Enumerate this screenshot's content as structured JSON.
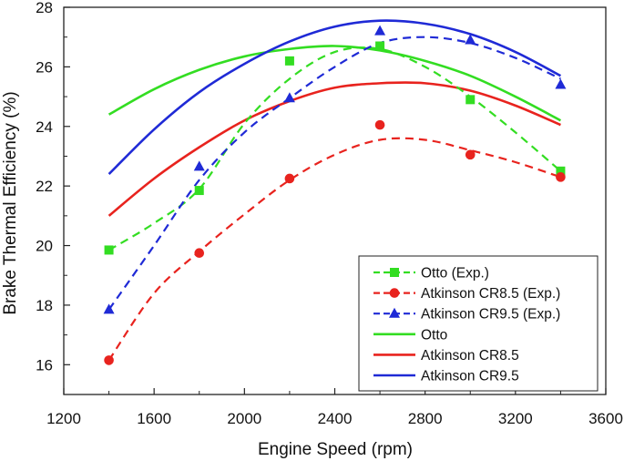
{
  "chart_data": {
    "type": "line",
    "xlabel": "Engine Speed (rpm)",
    "ylabel": "Brake Thermal Efficiency (%)",
    "xlim": [
      1200,
      3600
    ],
    "ylim": [
      15,
      28
    ],
    "xticks": [
      1200,
      1600,
      2000,
      2400,
      2800,
      3200,
      3600
    ],
    "yticks": [
      16,
      18,
      20,
      22,
      24,
      26,
      28
    ],
    "grid": false,
    "legend_position": "bottom-right",
    "series": [
      {
        "name": "Otto (Exp.)",
        "kind": "experimental",
        "color": "#33dd22",
        "marker": "square",
        "dashed": true,
        "x": [
          1400,
          1800,
          2200,
          2600,
          3000,
          3400
        ],
        "y": [
          19.85,
          21.85,
          26.2,
          26.7,
          24.9,
          22.5
        ]
      },
      {
        "name": "Atkinson CR8.5 (Exp.)",
        "kind": "experimental",
        "color": "#e8231e",
        "marker": "circle",
        "dashed": true,
        "x": [
          1400,
          1800,
          2200,
          2600,
          3000,
          3400
        ],
        "y": [
          16.15,
          19.75,
          22.25,
          24.05,
          23.05,
          22.3
        ]
      },
      {
        "name": "Atkinson CR9.5 (Exp.)",
        "kind": "experimental",
        "color": "#1f2ad6",
        "marker": "triangle",
        "dashed": true,
        "x": [
          1400,
          1800,
          2200,
          2600,
          3000,
          3400
        ],
        "y": [
          17.85,
          22.65,
          24.95,
          27.2,
          26.9,
          25.4
        ]
      },
      {
        "name": "Otto",
        "kind": "model",
        "color": "#33dd22",
        "marker": "none",
        "dashed": false,
        "x": [
          1400,
          1600,
          1800,
          2000,
          2200,
          2400,
          2600,
          2800,
          3000,
          3200,
          3400
        ],
        "y": [
          24.4,
          25.25,
          25.9,
          26.35,
          26.6,
          26.7,
          26.55,
          26.2,
          25.7,
          25.0,
          24.2
        ]
      },
      {
        "name": "Atkinson CR8.5",
        "kind": "model",
        "color": "#e8231e",
        "marker": "none",
        "dashed": false,
        "x": [
          1400,
          1600,
          1800,
          2000,
          2200,
          2400,
          2600,
          2800,
          3000,
          3200,
          3400
        ],
        "y": [
          21.0,
          22.25,
          23.3,
          24.2,
          24.85,
          25.3,
          25.45,
          25.45,
          25.2,
          24.7,
          24.05
        ]
      },
      {
        "name": "Atkinson CR9.5",
        "kind": "model",
        "color": "#1f2ad6",
        "marker": "none",
        "dashed": false,
        "x": [
          1400,
          1600,
          1800,
          2000,
          2200,
          2400,
          2600,
          2800,
          3000,
          3200,
          3400
        ],
        "y": [
          22.4,
          23.9,
          25.15,
          26.1,
          26.85,
          27.35,
          27.55,
          27.45,
          27.1,
          26.5,
          25.7
        ]
      }
    ],
    "experimental_fits": [
      {
        "name": "Otto (Exp.)",
        "x": [
          1400,
          1600,
          1800,
          2000,
          2200,
          2400,
          2600,
          2800,
          3000,
          3200,
          3400
        ],
        "y": [
          19.85,
          20.75,
          21.9,
          24.1,
          25.6,
          26.5,
          26.6,
          26.0,
          25.0,
          23.8,
          22.5
        ]
      },
      {
        "name": "Atkinson CR8.5 (Exp.)",
        "x": [
          1400,
          1600,
          1800,
          2000,
          2200,
          2400,
          2600,
          2800,
          3000,
          3200,
          3400
        ],
        "y": [
          16.15,
          18.4,
          19.8,
          21.05,
          22.2,
          23.05,
          23.55,
          23.55,
          23.2,
          22.8,
          22.3
        ]
      },
      {
        "name": "Atkinson CR9.5 (Exp.)",
        "x": [
          1400,
          1600,
          1800,
          2000,
          2200,
          2400,
          2600,
          2800,
          3000,
          3200,
          3400
        ],
        "y": [
          17.85,
          20.0,
          22.2,
          23.8,
          24.95,
          26.0,
          26.8,
          27.0,
          26.8,
          26.3,
          25.6
        ]
      }
    ]
  }
}
